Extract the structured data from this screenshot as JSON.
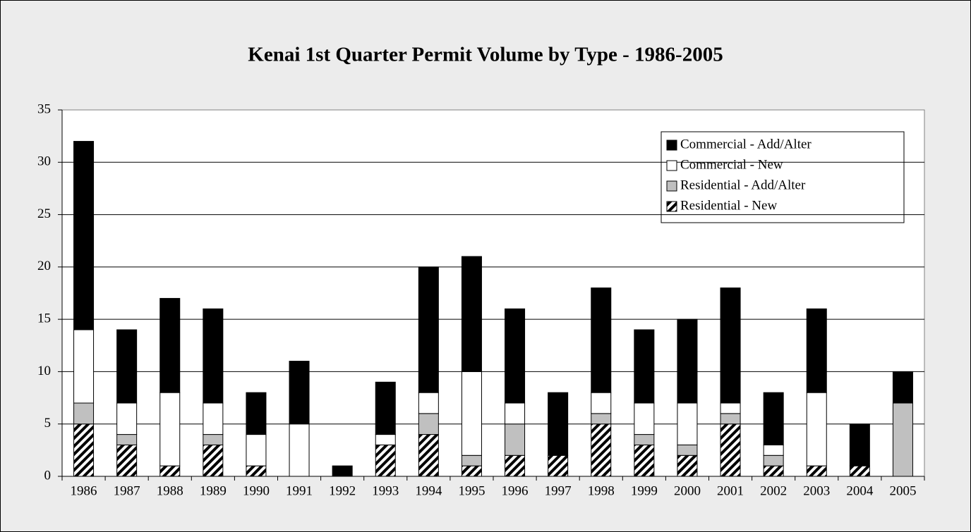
{
  "chart_data": {
    "type": "stacked-bar",
    "title": "Kenai 1st Quarter Permit Volume by Type - 1986-2005",
    "categories": [
      "1986",
      "1987",
      "1988",
      "1989",
      "1990",
      "1991",
      "1992",
      "1993",
      "1994",
      "1995",
      "1996",
      "1997",
      "1998",
      "1999",
      "2000",
      "2001",
      "2002",
      "2003",
      "2004",
      "2005"
    ],
    "series": [
      {
        "name": "Residential - New",
        "color": "#000000",
        "hatch": true,
        "values": [
          5,
          3,
          1,
          3,
          1,
          0,
          0,
          3,
          4,
          1,
          2,
          2,
          5,
          3,
          2,
          5,
          1,
          1,
          1,
          0
        ]
      },
      {
        "name": "Residential - Add/Alter",
        "color": "#c0c0c0",
        "values": [
          2,
          1,
          0,
          1,
          0,
          0,
          0,
          0,
          2,
          1,
          3,
          0,
          1,
          1,
          1,
          1,
          1,
          0,
          0,
          7
        ]
      },
      {
        "name": "Commercial - New",
        "color": "#ffffff",
        "values": [
          7,
          3,
          7,
          3,
          3,
          5,
          0,
          1,
          2,
          8,
          2,
          0,
          2,
          3,
          4,
          1,
          1,
          7,
          0,
          0
        ]
      },
      {
        "name": "Commercial - Add/Alter",
        "color": "#000000",
        "values": [
          18,
          7,
          9,
          9,
          4,
          6,
          1,
          5,
          12,
          11,
          9,
          6,
          10,
          7,
          8,
          11,
          5,
          8,
          4,
          3
        ]
      }
    ],
    "ylim": [
      0,
      35
    ],
    "yticks": [
      0,
      5,
      10,
      15,
      20,
      25,
      30,
      35
    ],
    "grid": true,
    "legend": "top-right"
  }
}
